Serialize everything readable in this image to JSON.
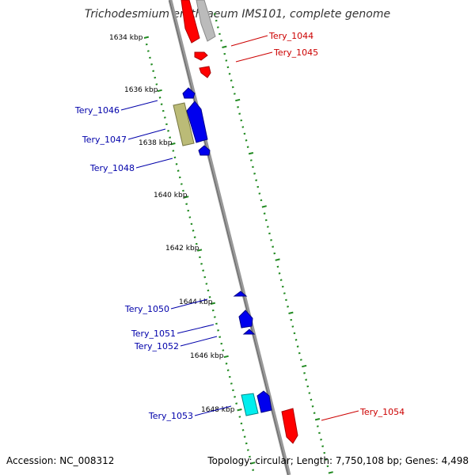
{
  "title": "Trichodesmium erythraeum IMS101, complete genome",
  "footer": {
    "accession": "Accession: NC_008312",
    "summary": "Topology: circular; Length: 7,750,108 bp; Genes: 4,498"
  },
  "colors": {
    "forward": "#cc0000",
    "reverse": "#0000aa",
    "forward_feature": "#ff0000",
    "reverse_feature": "#0000ee",
    "rna": "#aaaaaa",
    "other_feature": "#bbbb77",
    "cyan_feature": "#00eeee",
    "ticks": "#228b22",
    "backbone": "#999999"
  },
  "kbp_labels": [
    "1634 kbp",
    "1636 kbp",
    "1638 kbp",
    "1640 kbp",
    "1642 kbp",
    "1644 kbp",
    "1646 kbp",
    "1648 kbp"
  ],
  "genes": [
    {
      "name": "Tery_1044",
      "strand": "forward"
    },
    {
      "name": "Tery_1045",
      "strand": "forward"
    },
    {
      "name": "Tery_1046",
      "strand": "reverse"
    },
    {
      "name": "Tery_1047",
      "strand": "reverse"
    },
    {
      "name": "Tery_1048",
      "strand": "reverse"
    },
    {
      "name": "Tery_1050",
      "strand": "reverse"
    },
    {
      "name": "Tery_1051",
      "strand": "reverse"
    },
    {
      "name": "Tery_1052",
      "strand": "reverse"
    },
    {
      "name": "Tery_1053",
      "strand": "reverse"
    },
    {
      "name": "Tery_1054",
      "strand": "forward"
    }
  ]
}
